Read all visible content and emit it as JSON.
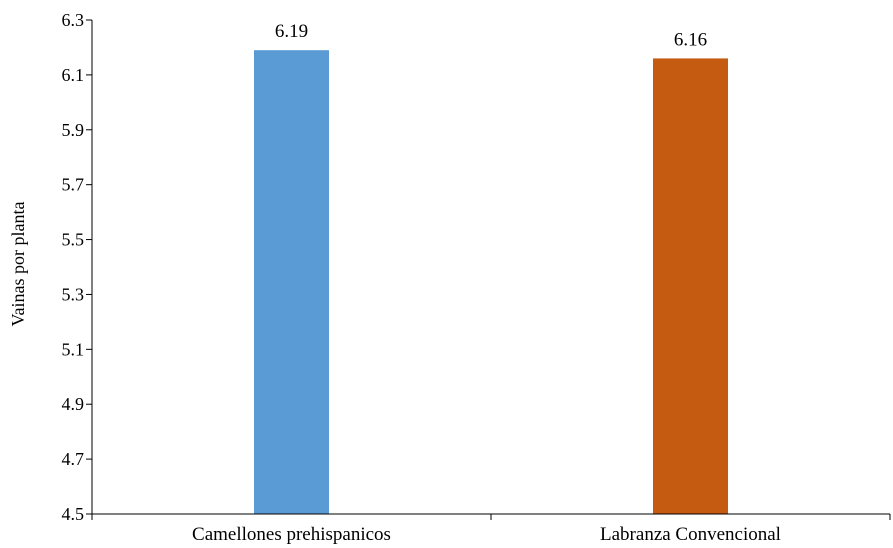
{
  "chart_data": {
    "type": "bar",
    "categories": [
      "Camellones prehispanicos",
      "Labranza Convencional"
    ],
    "values": [
      6.19,
      6.16
    ],
    "data_labels": [
      "6.19",
      "6.16"
    ],
    "colors": [
      "#5b9bd5",
      "#c55a11"
    ],
    "title": "",
    "xlabel": "",
    "ylabel": "Vainas por planta",
    "ylim": [
      4.5,
      6.3
    ],
    "yticks": [
      "4.5",
      "4.7",
      "4.9",
      "5.1",
      "5.3",
      "5.5",
      "5.7",
      "5.9",
      "6.1",
      "6.3"
    ],
    "grid": false,
    "legend": "none"
  }
}
